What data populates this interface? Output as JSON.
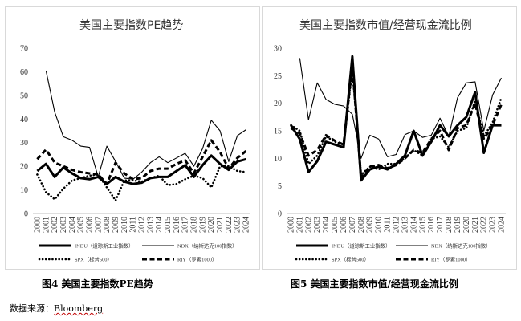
{
  "captions": {
    "left": "图4  美国主要指数PE趋势",
    "right": "图5  美国主要指数市值/经营现金流比例"
  },
  "source": {
    "label": "数据来源：",
    "name": "Bloomberg"
  },
  "chart_data": [
    {
      "type": "line",
      "title": "美国主要指数PE趋势",
      "x": [
        "2000",
        "2001",
        "2002",
        "2003",
        "2004",
        "2005",
        "2006",
        "2007",
        "2008",
        "2009",
        "2010",
        "2011",
        "2012",
        "2013",
        "2014",
        "2015",
        "2016",
        "2017",
        "2018",
        "2019",
        "2020",
        "2021",
        "2022",
        "2023",
        "2024"
      ],
      "ylim": [
        0,
        70
      ],
      "yticks": [
        0,
        10,
        20,
        30,
        40,
        50,
        60,
        70
      ],
      "grid": false,
      "legend_position": "bottom",
      "series": [
        {
          "name": "INDU（道琼斯工业指数）",
          "style": "thick-solid",
          "values": [
            18,
            21,
            15.5,
            19.5,
            17,
            15,
            14.5,
            15.5,
            12.5,
            15.5,
            13.5,
            12.5,
            13,
            15,
            15.5,
            15.5,
            18,
            20.5,
            15.5,
            20.5,
            24.5,
            21,
            18.5,
            22,
            23
          ]
        },
        {
          "name": "NDX（纳斯达克100指数）",
          "style": "thin-solid",
          "values": [
            null,
            60.5,
            43,
            32.5,
            31,
            28.5,
            28,
            15.5,
            28.5,
            22,
            15,
            14.5,
            17.5,
            21.5,
            24,
            21.5,
            23.5,
            25.5,
            20,
            27.5,
            39.5,
            35,
            22,
            33,
            35.5
          ]
        },
        {
          "name": "SPX（标普500）",
          "style": "dotted",
          "values": [
            16.5,
            9,
            6,
            10.5,
            14,
            15,
            16,
            16.5,
            11,
            5.5,
            14,
            14,
            13.5,
            15,
            16,
            12,
            12.5,
            14.5,
            16,
            15,
            11,
            20,
            20,
            18,
            17.5
          ]
        },
        {
          "name": "RIY（罗素1000）",
          "style": "dashed",
          "values": [
            23,
            27,
            21.5,
            20,
            18.5,
            17.5,
            17,
            16.5,
            12.5,
            21.5,
            17,
            14.5,
            15,
            18,
            19,
            19,
            21,
            22.5,
            17,
            24,
            31,
            26,
            19,
            23.5,
            26.5
          ]
        }
      ]
    },
    {
      "type": "line",
      "title": "美国主要指数市值/经营现金流比例",
      "x": [
        "2000",
        "2001",
        "2002",
        "2003",
        "2004",
        "2005",
        "2006",
        "2007",
        "2008",
        "2009",
        "2010",
        "2011",
        "2012",
        "2013",
        "2014",
        "2015",
        "2016",
        "2017",
        "2018",
        "2019",
        "2020",
        "2021",
        "2022",
        "2023",
        "2024"
      ],
      "ylim": [
        0,
        30
      ],
      "yticks": [
        0,
        5,
        10,
        15,
        20,
        25,
        30
      ],
      "grid": false,
      "legend_position": "bottom",
      "series": [
        {
          "name": "INDU（道琼斯工业指数）",
          "style": "thick-solid",
          "values": [
            16,
            13.5,
            7.5,
            9.5,
            13,
            12.5,
            12,
            28.5,
            6,
            8,
            8.5,
            8,
            9,
            10.5,
            15,
            10.5,
            13,
            16,
            14,
            16,
            17.5,
            22,
            11,
            16,
            16
          ]
        },
        {
          "name": "NDX（纳斯达克100指数）",
          "style": "thin-solid",
          "values": [
            null,
            28.2,
            17,
            23.7,
            20.7,
            19.8,
            19.5,
            18,
            10,
            14.2,
            13.5,
            10.3,
            10.7,
            14.3,
            15,
            13.8,
            14.2,
            17.3,
            14,
            21,
            23.7,
            23.9,
            15,
            21.5,
            24.6
          ]
        },
        {
          "name": "SPX（标普500）",
          "style": "dotted",
          "values": [
            16,
            15,
            9,
            10.5,
            14,
            13,
            12.5,
            26,
            7,
            8.5,
            8,
            9,
            9,
            10,
            11.5,
            10.5,
            13.5,
            14,
            12,
            15,
            15.5,
            20.5,
            14,
            16.5,
            21
          ]
        },
        {
          "name": "RIY（罗素1000）",
          "style": "dashed",
          "values": [
            15.5,
            14.5,
            10.5,
            11.5,
            14.2,
            13.2,
            12.5,
            27,
            6.5,
            8.5,
            8.8,
            8.2,
            8.8,
            10,
            11.5,
            11,
            13.5,
            15,
            11.5,
            15.5,
            16,
            20,
            13.5,
            16,
            19.8
          ]
        }
      ]
    }
  ]
}
